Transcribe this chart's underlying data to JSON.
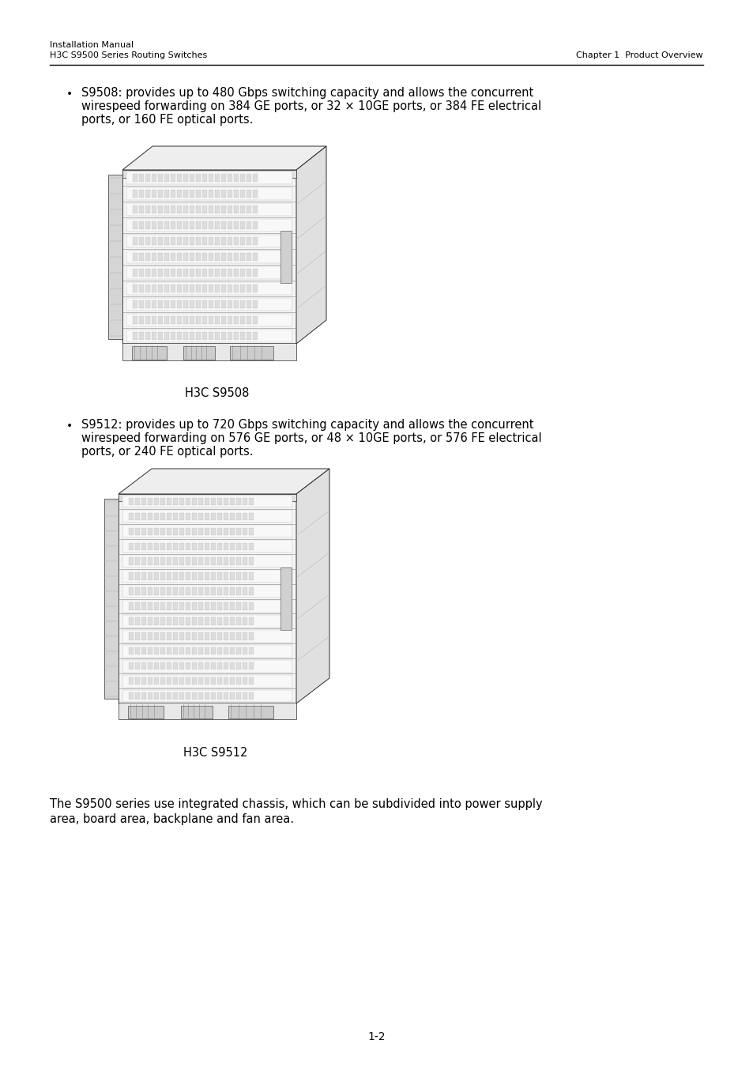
{
  "bg_color": "#ffffff",
  "header_left_line1": "Installation Manual",
  "header_left_line2": "H3C S9500 Series Routing Switches",
  "header_right": "Chapter 1  Product Overview",
  "bullet1_lines": [
    "S9508: provides up to 480 Gbps switching capacity and allows the concurrent",
    "wirespeed forwarding on 384 GE ports, or 32 × 10GE ports, or 384 FE electrical",
    "ports, or 160 FE optical ports."
  ],
  "bullet2_lines": [
    "S9512: provides up to 720 Gbps switching capacity and allows the concurrent",
    "wirespeed forwarding on 576 GE ports, or 48 × 10GE ports, or 576 FE electrical",
    "ports, or 240 FE optical ports."
  ],
  "caption1": "H3C S9508",
  "caption2": "H3C S9512",
  "footer_line1": "The S9500 series use integrated chassis, which can be subdivided into power supply",
  "footer_line2": "area, board area, backplane and fan area.",
  "page_number": "1-2",
  "text_color": "#000000",
  "line_color": "#000000",
  "header_fs": 8.0,
  "body_fs": 10.5,
  "caption_fs": 10.5,
  "footer_fs": 10.5,
  "page_fs": 10.0
}
